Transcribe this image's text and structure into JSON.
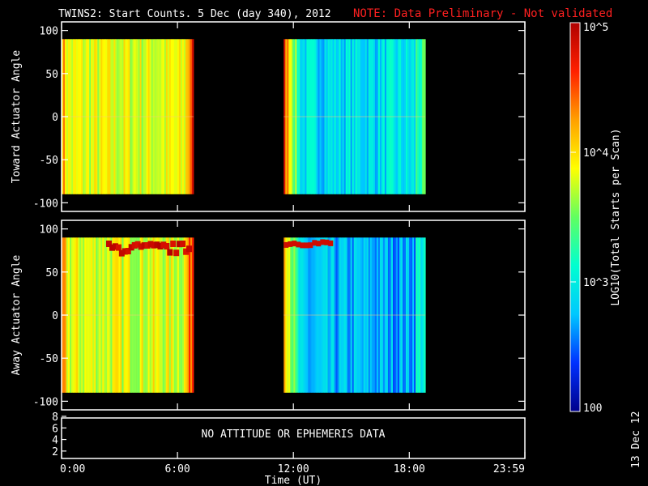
{
  "header": {
    "title": "TWINS2: Start Counts.  5 Dec (day 340), 2012",
    "note": "NOTE: Data Preliminary - Not validated",
    "note_color": "#ff2020"
  },
  "side_stamp": "13 Dec 12",
  "colorbar": {
    "label": "LOG10(Total Starts per Scan)",
    "scale": "log",
    "range": [
      100,
      100000
    ],
    "tick_labels": [
      {
        "value": 100000,
        "label": "10^5"
      },
      {
        "value": 10000,
        "label": "10^4"
      },
      {
        "value": 1000,
        "label": "10^3"
      },
      {
        "value": 100,
        "label": "100"
      }
    ],
    "colormap": [
      "#00008b",
      "#0030ff",
      "#00c8ff",
      "#00ffd0",
      "#60ff60",
      "#ffff00",
      "#ffa000",
      "#ff2000",
      "#b00000"
    ]
  },
  "chart_data": [
    {
      "type": "heatmap",
      "ylabel": "Toward Actuator Angle",
      "xlim": [
        "0:00",
        "23:59"
      ],
      "ylim": [
        -110,
        110
      ],
      "y_ticks": [
        100,
        50,
        0,
        -50,
        -100
      ],
      "x_ticks": [
        "0:00",
        "6:00",
        "12:00",
        "18:00",
        "23:59"
      ],
      "data_extent_y": [
        -90,
        90
      ],
      "segments": [
        {
          "start": "0:00",
          "end": "6:50",
          "dominant": "yellow-green",
          "approx_log10": 3.8
        },
        {
          "start": "11:30",
          "end": "18:50",
          "dominant": "blue-cyan",
          "approx_log10": 2.9
        }
      ]
    },
    {
      "type": "heatmap",
      "ylabel": "Away Actuator Angle",
      "xlim": [
        "0:00",
        "23:59"
      ],
      "ylim": [
        -110,
        110
      ],
      "y_ticks": [
        100,
        50,
        0,
        -50,
        -100
      ],
      "x_ticks": [
        "0:00",
        "6:00",
        "12:00",
        "18:00",
        "23:59"
      ],
      "data_extent_y": [
        -90,
        90
      ],
      "segments": [
        {
          "start": "0:00",
          "end": "6:50",
          "dominant": "yellow-green",
          "approx_log10": 3.8,
          "feature": "red band near +75 deg"
        },
        {
          "start": "11:30",
          "end": "18:50",
          "dominant": "blue",
          "approx_log10": 2.7,
          "feature": "red band near +85 deg at 11:30-13:00"
        }
      ]
    },
    {
      "type": "table",
      "ylim": [
        1,
        8
      ],
      "y_ticks": [
        8,
        6,
        4,
        2
      ],
      "message": "NO ATTITUDE OR EPHEMERIS DATA",
      "xlabel": "Time (UT)",
      "x_ticks": [
        "0:00",
        "6:00",
        "12:00",
        "18:00",
        "23:59"
      ]
    }
  ]
}
